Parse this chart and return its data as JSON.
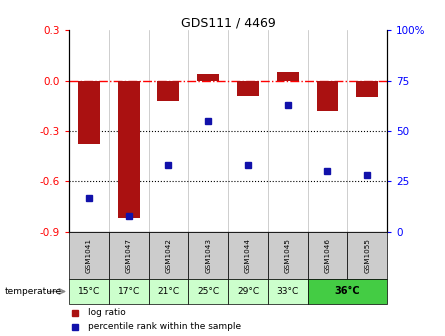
{
  "title": "GDS111 / 4469",
  "samples": [
    "GSM1041",
    "GSM1047",
    "GSM1042",
    "GSM1043",
    "GSM1044",
    "GSM1045",
    "GSM1046",
    "GSM1055"
  ],
  "sample_temps": [
    "15°C",
    "17°C",
    "21°C",
    "25°C",
    "29°C",
    "33°C",
    "36°C",
    "36°C"
  ],
  "log_ratio": [
    -0.38,
    -0.82,
    -0.12,
    0.04,
    -0.09,
    0.05,
    -0.18,
    -0.1
  ],
  "percentile_rank": [
    17,
    8,
    33,
    55,
    33,
    63,
    30,
    28
  ],
  "ylim_left": [
    -0.9,
    0.3
  ],
  "ylim_right": [
    0,
    100
  ],
  "left_ticks": [
    0.3,
    0.0,
    -0.3,
    -0.6,
    -0.9
  ],
  "right_ticks": [
    100,
    75,
    50,
    25,
    0
  ],
  "bar_color": "#aa1111",
  "dot_color": "#1111aa",
  "bg_color": "#ffffff",
  "plot_bg": "#ffffff",
  "temp_row_light": "#ccffcc",
  "temp_row_dark": "#44cc44",
  "sample_row_color": "#cccccc"
}
